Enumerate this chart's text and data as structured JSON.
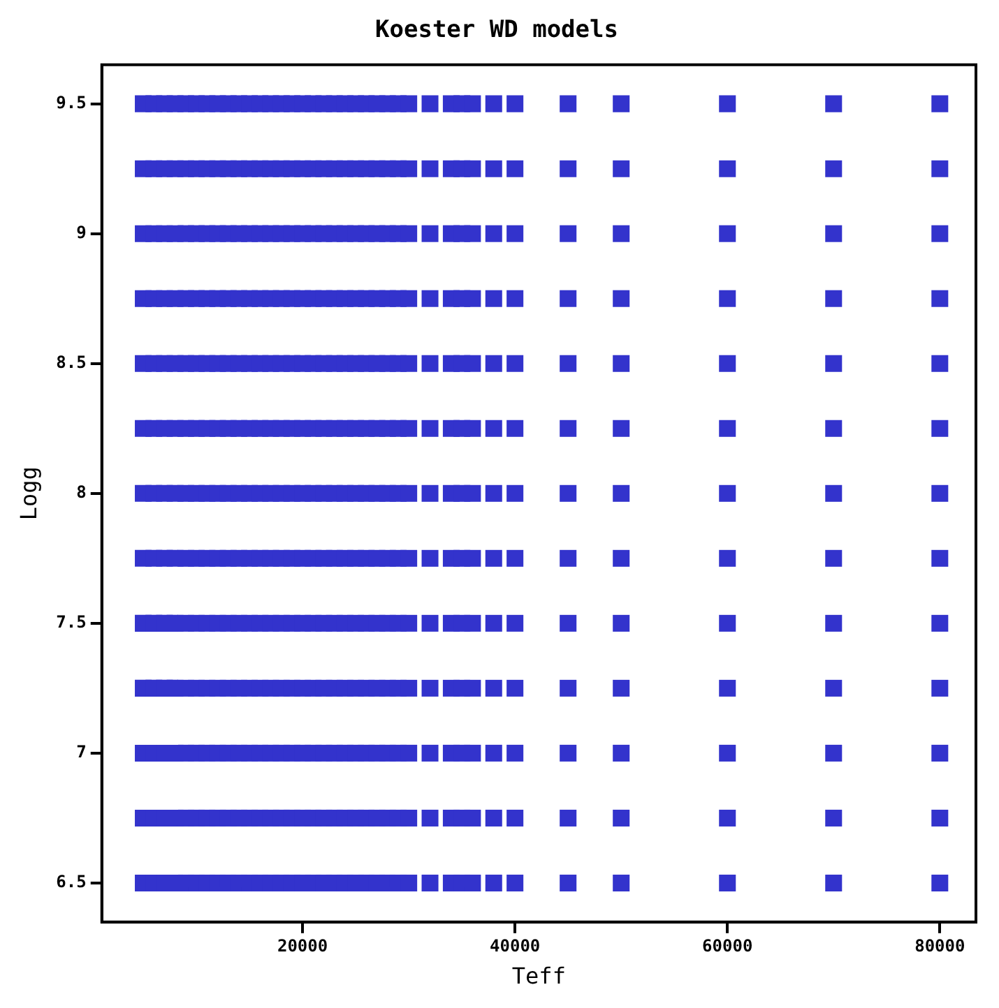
{
  "chart_data": {
    "type": "scatter",
    "title": "Koester WD models",
    "xlabel": "Teff",
    "ylabel": "Logg",
    "xlim": [
      1100,
      83400
    ],
    "ylim": [
      6.35,
      9.65
    ],
    "xticks": [
      20000,
      40000,
      60000,
      80000
    ],
    "yticks": [
      6.5,
      7,
      7.5,
      8,
      8.5,
      9,
      9.5
    ],
    "grid": false,
    "legend": false,
    "marker": "square",
    "series": [
      {
        "color": "#3333cc",
        "x": [
          5000,
          6000,
          7000,
          8000,
          9000,
          10000,
          11000,
          12000,
          13000,
          14000,
          15000,
          16000,
          17000,
          18000,
          19000,
          20000,
          21000,
          22000,
          23000,
          24000,
          25000,
          26000,
          27000,
          28000,
          29000,
          30000,
          32000,
          34000,
          35000,
          36000,
          38000,
          40000,
          45000,
          50000,
          60000,
          70000,
          80000
        ],
        "values": [
          6.5,
          6.5,
          6.5,
          6.5,
          6.5,
          6.5,
          6.5,
          6.5,
          6.5,
          6.5,
          6.5,
          6.5,
          6.5,
          6.5,
          6.5,
          6.5,
          6.5,
          6.5,
          6.5,
          6.5,
          6.5,
          6.5,
          6.5,
          6.5,
          6.5,
          6.5,
          6.5,
          6.5,
          6.5,
          6.5,
          6.5,
          6.5,
          6.5,
          6.5,
          6.5,
          6.5,
          6.5
        ]
      },
      {
        "color": "#3333cc",
        "x": [
          5000,
          6000,
          7000,
          8000,
          9000,
          10000,
          11000,
          12000,
          13000,
          14000,
          15000,
          16000,
          17000,
          18000,
          19000,
          20000,
          21000,
          22000,
          23000,
          24000,
          25000,
          26000,
          27000,
          28000,
          29000,
          30000,
          32000,
          34000,
          35000,
          36000,
          38000,
          40000,
          45000,
          50000,
          60000,
          70000,
          80000
        ],
        "values": [
          6.75,
          6.75,
          6.75,
          6.75,
          6.75,
          6.75,
          6.75,
          6.75,
          6.75,
          6.75,
          6.75,
          6.75,
          6.75,
          6.75,
          6.75,
          6.75,
          6.75,
          6.75,
          6.75,
          6.75,
          6.75,
          6.75,
          6.75,
          6.75,
          6.75,
          6.75,
          6.75,
          6.75,
          6.75,
          6.75,
          6.75,
          6.75,
          6.75,
          6.75,
          6.75,
          6.75,
          6.75
        ]
      },
      {
        "color": "#3333cc",
        "x": [
          5000,
          6000,
          7000,
          8000,
          9000,
          10000,
          11000,
          12000,
          13000,
          14000,
          15000,
          16000,
          17000,
          18000,
          19000,
          20000,
          21000,
          22000,
          23000,
          24000,
          25000,
          26000,
          27000,
          28000,
          29000,
          30000,
          32000,
          34000,
          35000,
          36000,
          38000,
          40000,
          45000,
          50000,
          60000,
          70000,
          80000
        ],
        "values": [
          7,
          7,
          7,
          7,
          7,
          7,
          7,
          7,
          7,
          7,
          7,
          7,
          7,
          7,
          7,
          7,
          7,
          7,
          7,
          7,
          7,
          7,
          7,
          7,
          7,
          7,
          7,
          7,
          7,
          7,
          7,
          7,
          7,
          7,
          7,
          7,
          7
        ]
      },
      {
        "color": "#3333cc",
        "x": [
          5000,
          6000,
          7000,
          8000,
          9000,
          10000,
          11000,
          12000,
          13000,
          14000,
          15000,
          16000,
          17000,
          18000,
          19000,
          20000,
          21000,
          22000,
          23000,
          24000,
          25000,
          26000,
          27000,
          28000,
          29000,
          30000,
          32000,
          34000,
          35000,
          36000,
          38000,
          40000,
          45000,
          50000,
          60000,
          70000,
          80000
        ],
        "values": [
          7.25,
          7.25,
          7.25,
          7.25,
          7.25,
          7.25,
          7.25,
          7.25,
          7.25,
          7.25,
          7.25,
          7.25,
          7.25,
          7.25,
          7.25,
          7.25,
          7.25,
          7.25,
          7.25,
          7.25,
          7.25,
          7.25,
          7.25,
          7.25,
          7.25,
          7.25,
          7.25,
          7.25,
          7.25,
          7.25,
          7.25,
          7.25,
          7.25,
          7.25,
          7.25,
          7.25,
          7.25
        ]
      },
      {
        "color": "#3333cc",
        "x": [
          5000,
          6000,
          7000,
          8000,
          9000,
          10000,
          11000,
          12000,
          13000,
          14000,
          15000,
          16000,
          17000,
          18000,
          19000,
          20000,
          21000,
          22000,
          23000,
          24000,
          25000,
          26000,
          27000,
          28000,
          29000,
          30000,
          32000,
          34000,
          35000,
          36000,
          38000,
          40000,
          45000,
          50000,
          60000,
          70000,
          80000
        ],
        "values": [
          7.5,
          7.5,
          7.5,
          7.5,
          7.5,
          7.5,
          7.5,
          7.5,
          7.5,
          7.5,
          7.5,
          7.5,
          7.5,
          7.5,
          7.5,
          7.5,
          7.5,
          7.5,
          7.5,
          7.5,
          7.5,
          7.5,
          7.5,
          7.5,
          7.5,
          7.5,
          7.5,
          7.5,
          7.5,
          7.5,
          7.5,
          7.5,
          7.5,
          7.5,
          7.5,
          7.5,
          7.5
        ]
      },
      {
        "color": "#3333cc",
        "x": [
          5000,
          6000,
          7000,
          8000,
          9000,
          10000,
          11000,
          12000,
          13000,
          14000,
          15000,
          16000,
          17000,
          18000,
          19000,
          20000,
          21000,
          22000,
          23000,
          24000,
          25000,
          26000,
          27000,
          28000,
          29000,
          30000,
          32000,
          34000,
          35000,
          36000,
          38000,
          40000,
          45000,
          50000,
          60000,
          70000,
          80000
        ],
        "values": [
          7.75,
          7.75,
          7.75,
          7.75,
          7.75,
          7.75,
          7.75,
          7.75,
          7.75,
          7.75,
          7.75,
          7.75,
          7.75,
          7.75,
          7.75,
          7.75,
          7.75,
          7.75,
          7.75,
          7.75,
          7.75,
          7.75,
          7.75,
          7.75,
          7.75,
          7.75,
          7.75,
          7.75,
          7.75,
          7.75,
          7.75,
          7.75,
          7.75,
          7.75,
          7.75,
          7.75,
          7.75
        ]
      },
      {
        "color": "#3333cc",
        "x": [
          5000,
          6000,
          7000,
          8000,
          9000,
          10000,
          11000,
          12000,
          13000,
          14000,
          15000,
          16000,
          17000,
          18000,
          19000,
          20000,
          21000,
          22000,
          23000,
          24000,
          25000,
          26000,
          27000,
          28000,
          29000,
          30000,
          32000,
          34000,
          35000,
          36000,
          38000,
          40000,
          45000,
          50000,
          60000,
          70000,
          80000
        ],
        "values": [
          8,
          8,
          8,
          8,
          8,
          8,
          8,
          8,
          8,
          8,
          8,
          8,
          8,
          8,
          8,
          8,
          8,
          8,
          8,
          8,
          8,
          8,
          8,
          8,
          8,
          8,
          8,
          8,
          8,
          8,
          8,
          8,
          8,
          8,
          8,
          8,
          8
        ]
      },
      {
        "color": "#3333cc",
        "x": [
          5000,
          6000,
          7000,
          8000,
          9000,
          10000,
          11000,
          12000,
          13000,
          14000,
          15000,
          16000,
          17000,
          18000,
          19000,
          20000,
          21000,
          22000,
          23000,
          24000,
          25000,
          26000,
          27000,
          28000,
          29000,
          30000,
          32000,
          34000,
          35000,
          36000,
          38000,
          40000,
          45000,
          50000,
          60000,
          70000,
          80000
        ],
        "values": [
          8.25,
          8.25,
          8.25,
          8.25,
          8.25,
          8.25,
          8.25,
          8.25,
          8.25,
          8.25,
          8.25,
          8.25,
          8.25,
          8.25,
          8.25,
          8.25,
          8.25,
          8.25,
          8.25,
          8.25,
          8.25,
          8.25,
          8.25,
          8.25,
          8.25,
          8.25,
          8.25,
          8.25,
          8.25,
          8.25,
          8.25,
          8.25,
          8.25,
          8.25,
          8.25,
          8.25,
          8.25
        ]
      },
      {
        "color": "#3333cc",
        "x": [
          5000,
          6000,
          7000,
          8000,
          9000,
          10000,
          11000,
          12000,
          13000,
          14000,
          15000,
          16000,
          17000,
          18000,
          19000,
          20000,
          21000,
          22000,
          23000,
          24000,
          25000,
          26000,
          27000,
          28000,
          29000,
          30000,
          32000,
          34000,
          35000,
          36000,
          38000,
          40000,
          45000,
          50000,
          60000,
          70000,
          80000
        ],
        "values": [
          8.5,
          8.5,
          8.5,
          8.5,
          8.5,
          8.5,
          8.5,
          8.5,
          8.5,
          8.5,
          8.5,
          8.5,
          8.5,
          8.5,
          8.5,
          8.5,
          8.5,
          8.5,
          8.5,
          8.5,
          8.5,
          8.5,
          8.5,
          8.5,
          8.5,
          8.5,
          8.5,
          8.5,
          8.5,
          8.5,
          8.5,
          8.5,
          8.5,
          8.5,
          8.5,
          8.5,
          8.5
        ]
      },
      {
        "color": "#3333cc",
        "x": [
          5000,
          6000,
          7000,
          8000,
          9000,
          10000,
          11000,
          12000,
          13000,
          14000,
          15000,
          16000,
          17000,
          18000,
          19000,
          20000,
          21000,
          22000,
          23000,
          24000,
          25000,
          26000,
          27000,
          28000,
          29000,
          30000,
          32000,
          34000,
          35000,
          36000,
          38000,
          40000,
          45000,
          50000,
          60000,
          70000,
          80000
        ],
        "values": [
          8.75,
          8.75,
          8.75,
          8.75,
          8.75,
          8.75,
          8.75,
          8.75,
          8.75,
          8.75,
          8.75,
          8.75,
          8.75,
          8.75,
          8.75,
          8.75,
          8.75,
          8.75,
          8.75,
          8.75,
          8.75,
          8.75,
          8.75,
          8.75,
          8.75,
          8.75,
          8.75,
          8.75,
          8.75,
          8.75,
          8.75,
          8.75,
          8.75,
          8.75,
          8.75,
          8.75,
          8.75
        ]
      },
      {
        "color": "#3333cc",
        "x": [
          5000,
          6000,
          7000,
          8000,
          9000,
          10000,
          11000,
          12000,
          13000,
          14000,
          15000,
          16000,
          17000,
          18000,
          19000,
          20000,
          21000,
          22000,
          23000,
          24000,
          25000,
          26000,
          27000,
          28000,
          29000,
          30000,
          32000,
          34000,
          35000,
          36000,
          38000,
          40000,
          45000,
          50000,
          60000,
          70000,
          80000
        ],
        "values": [
          9,
          9,
          9,
          9,
          9,
          9,
          9,
          9,
          9,
          9,
          9,
          9,
          9,
          9,
          9,
          9,
          9,
          9,
          9,
          9,
          9,
          9,
          9,
          9,
          9,
          9,
          9,
          9,
          9,
          9,
          9,
          9,
          9,
          9,
          9,
          9,
          9
        ]
      },
      {
        "color": "#3333cc",
        "x": [
          5000,
          6000,
          7000,
          8000,
          9000,
          10000,
          11000,
          12000,
          13000,
          14000,
          15000,
          16000,
          17000,
          18000,
          19000,
          20000,
          21000,
          22000,
          23000,
          24000,
          25000,
          26000,
          27000,
          28000,
          29000,
          30000,
          32000,
          34000,
          35000,
          36000,
          38000,
          40000,
          45000,
          50000,
          60000,
          70000,
          80000
        ],
        "values": [
          9.25,
          9.25,
          9.25,
          9.25,
          9.25,
          9.25,
          9.25,
          9.25,
          9.25,
          9.25,
          9.25,
          9.25,
          9.25,
          9.25,
          9.25,
          9.25,
          9.25,
          9.25,
          9.25,
          9.25,
          9.25,
          9.25,
          9.25,
          9.25,
          9.25,
          9.25,
          9.25,
          9.25,
          9.25,
          9.25,
          9.25,
          9.25,
          9.25,
          9.25,
          9.25,
          9.25,
          9.25
        ]
      },
      {
        "color": "#3333cc",
        "x": [
          5000,
          6000,
          7000,
          8000,
          9000,
          10000,
          11000,
          12000,
          13000,
          14000,
          15000,
          16000,
          17000,
          18000,
          19000,
          20000,
          21000,
          22000,
          23000,
          24000,
          25000,
          26000,
          27000,
          28000,
          29000,
          30000,
          32000,
          34000,
          35000,
          36000,
          38000,
          40000,
          45000,
          50000,
          60000,
          70000,
          80000
        ],
        "values": [
          9.5,
          9.5,
          9.5,
          9.5,
          9.5,
          9.5,
          9.5,
          9.5,
          9.5,
          9.5,
          9.5,
          9.5,
          9.5,
          9.5,
          9.5,
          9.5,
          9.5,
          9.5,
          9.5,
          9.5,
          9.5,
          9.5,
          9.5,
          9.5,
          9.5,
          9.5,
          9.5,
          9.5,
          9.5,
          9.5,
          9.5,
          9.5,
          9.5,
          9.5,
          9.5,
          9.5,
          9.5
        ]
      }
    ]
  }
}
